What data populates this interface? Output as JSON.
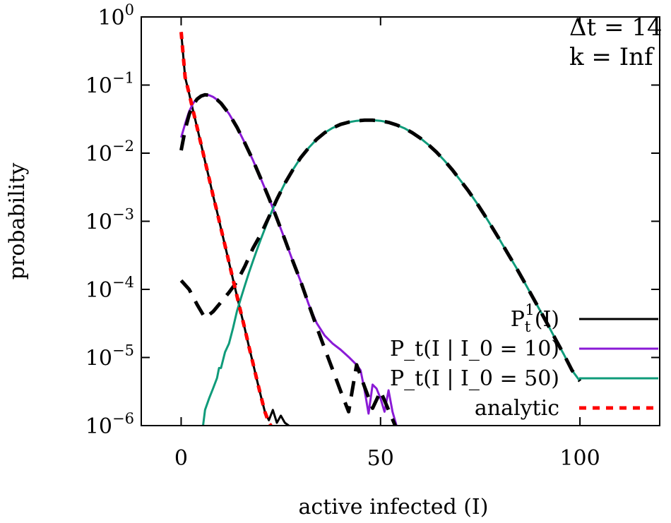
{
  "chart_data": {
    "type": "line",
    "title": "",
    "xlabel": "active infected (I)",
    "ylabel": "probability",
    "xlim": [
      -10,
      120
    ],
    "ylim": [
      1e-06,
      1
    ],
    "yscale": "log",
    "grid": false,
    "legend_position": "bottom-right",
    "x_ticks": [
      {
        "value": 0,
        "label": "0"
      },
      {
        "value": 50,
        "label": "50"
      },
      {
        "value": 100,
        "label": "100"
      }
    ],
    "y_ticks": [
      {
        "value": 1,
        "base": "10",
        "exp": "0"
      },
      {
        "value": 0.1,
        "base": "10",
        "exp": "−1"
      },
      {
        "value": 0.01,
        "base": "10",
        "exp": "−2"
      },
      {
        "value": 0.001,
        "base": "10",
        "exp": "−3"
      },
      {
        "value": 0.0001,
        "base": "10",
        "exp": "−4"
      },
      {
        "value": 1e-05,
        "base": "10",
        "exp": "−5"
      },
      {
        "value": 1e-06,
        "base": "10",
        "exp": "−6"
      }
    ],
    "annotations": [
      "Δt = 14",
      "k = Inf"
    ],
    "series": [
      {
        "name": "P_t^1(I)",
        "color": "#000000",
        "style": "solid",
        "x": [
          0,
          1,
          2,
          3,
          4,
          5,
          6,
          7,
          8,
          9,
          10,
          11,
          12,
          13,
          14,
          15,
          16,
          17,
          18,
          19,
          20,
          21,
          22,
          23,
          24,
          25,
          26,
          27
        ],
        "y": [
          0.6,
          0.13,
          0.075,
          0.042,
          0.024,
          0.0135,
          0.0076,
          0.0043,
          0.0024,
          0.00138,
          0.00078,
          0.00044,
          0.00025,
          0.00014,
          8e-05,
          4.5e-05,
          2.6e-05,
          1.45e-05,
          8.3e-06,
          4.7e-06,
          2.7e-06,
          1.6e-06,
          1.2e-06,
          1.7e-06,
          1.1e-06,
          1.4e-06,
          1.1e-06,
          1e-06
        ]
      },
      {
        "name": "P_t(I | I_0 = 10)",
        "color": "#8a1ad6",
        "style": "solid",
        "x": [
          0,
          1,
          2,
          3,
          4,
          5,
          6,
          7,
          8,
          9,
          10,
          12,
          14,
          16,
          18,
          20,
          22,
          24,
          26,
          28,
          30,
          32,
          34,
          36,
          38,
          40,
          42,
          44,
          45,
          46,
          47,
          48,
          49,
          50,
          51,
          52,
          53,
          54
        ],
        "y": [
          0.017,
          0.027,
          0.041,
          0.054,
          0.064,
          0.07,
          0.072,
          0.071,
          0.067,
          0.061,
          0.054,
          0.038,
          0.024,
          0.014,
          0.0079,
          0.0042,
          0.0022,
          0.0011,
          0.00054,
          0.00026,
          0.00013,
          6e-05,
          3.2e-05,
          2.1e-05,
          1.6e-05,
          1.3e-05,
          1.02e-05,
          7.8e-06,
          6.5e-06,
          3.3e-06,
          1.5e-06,
          4e-06,
          3.5e-06,
          2.5e-06,
          1.6e-06,
          3.3e-06,
          1.6e-06,
          1e-06
        ]
      },
      {
        "name": "P_t(I | I_0 = 50)",
        "color": "#0f9b7a",
        "style": "solid",
        "x": [
          5.5,
          6,
          7,
          8,
          9,
          9.5,
          10,
          11,
          12,
          13,
          14,
          15,
          16,
          17,
          18,
          19,
          20,
          22,
          24,
          26,
          28,
          30,
          32,
          34,
          36,
          38,
          40,
          42,
          44,
          46,
          48,
          50,
          52,
          54,
          56,
          58,
          60,
          62,
          64,
          66,
          68,
          70,
          72,
          74,
          76,
          78,
          80,
          82,
          84,
          86,
          88,
          90,
          92,
          94,
          96,
          98,
          100
        ],
        "y": [
          1e-06,
          1.7e-06,
          2.5e-06,
          3.5e-06,
          5e-06,
          7e-06,
          7e-06,
          1.2e-05,
          1.6e-05,
          2.7e-05,
          4.8e-05,
          7.5e-05,
          0.000115,
          0.000175,
          0.00026,
          0.00038,
          0.00055,
          0.0011,
          0.0021,
          0.0036,
          0.0057,
          0.0086,
          0.012,
          0.016,
          0.02,
          0.0235,
          0.0265,
          0.0285,
          0.0298,
          0.0305,
          0.0305,
          0.0298,
          0.0283,
          0.026,
          0.0232,
          0.0199,
          0.0166,
          0.0133,
          0.0104,
          0.0078,
          0.0057,
          0.004,
          0.0028,
          0.0019,
          0.00125,
          0.00081,
          0.00052,
          0.00033,
          0.00021,
          0.00013,
          8e-05,
          4.9e-05,
          3e-05,
          1.8e-05,
          1.1e-05,
          6.5e-06,
          4.5e-06
        ]
      },
      {
        "name": "P_t^1(I) (dashed)",
        "color": "#000000",
        "style": "dashed",
        "x": [
          0,
          1,
          2,
          3,
          4,
          5,
          6,
          7,
          8,
          9,
          10,
          12,
          14,
          16,
          18,
          20,
          22,
          24,
          26,
          28,
          30,
          32,
          34,
          36,
          38,
          40,
          42,
          44,
          46,
          48,
          50,
          52,
          54
        ],
        "y": [
          0.011,
          0.022,
          0.037,
          0.051,
          0.062,
          0.069,
          0.072,
          0.071,
          0.067,
          0.061,
          0.054,
          0.038,
          0.024,
          0.014,
          0.0079,
          0.0042,
          0.0022,
          0.0011,
          0.00054,
          0.00026,
          0.00013,
          6e-05,
          2.8e-05,
          1.35e-05,
          6.6e-06,
          3.2e-06,
          1.6e-06,
          7.8e-06,
          3.7e-06,
          1.8e-06,
          3.2e-06,
          1.7e-06,
          9e-07
        ]
      },
      {
        "name": "P_t^1(I) (dashed, I_0 = 50)",
        "color": "#000000",
        "style": "dashed",
        "x": [
          0,
          2,
          4,
          6,
          8,
          10,
          12,
          14,
          16,
          18,
          20,
          22,
          24,
          26,
          28,
          30,
          32,
          34,
          36,
          38,
          40,
          42,
          44,
          46,
          48,
          50,
          52,
          54,
          56,
          58,
          60,
          62,
          64,
          66,
          68,
          70,
          72,
          74,
          76,
          78,
          80,
          82,
          84,
          86,
          88,
          90,
          92,
          94,
          96,
          98,
          100
        ],
        "y": [
          0.000135,
          0.0001,
          6e-05,
          3.8e-05,
          4.7e-05,
          6.5e-05,
          9e-05,
          0.00013,
          0.00022,
          0.0004,
          0.00065,
          0.00115,
          0.0021,
          0.0036,
          0.0057,
          0.0086,
          0.012,
          0.016,
          0.02,
          0.0235,
          0.0265,
          0.0285,
          0.0298,
          0.0305,
          0.0305,
          0.0298,
          0.0283,
          0.026,
          0.0232,
          0.0199,
          0.0166,
          0.0133,
          0.0104,
          0.0078,
          0.0057,
          0.004,
          0.0028,
          0.0019,
          0.00125,
          0.00081,
          0.00052,
          0.00033,
          0.00021,
          0.00013,
          8e-05,
          4.9e-05,
          3e-05,
          1.8e-05,
          1.1e-05,
          6.5e-06,
          4.5e-06
        ]
      },
      {
        "name": "analytic",
        "color": "#ff0000",
        "style": "dotted",
        "x": [
          0,
          1,
          2,
          3,
          4,
          5,
          6,
          7,
          8,
          9,
          10,
          11,
          12,
          13,
          14,
          15,
          16,
          17,
          18,
          19,
          20,
          21,
          22,
          23,
          24,
          25,
          26,
          27
        ],
        "y": [
          0.6,
          0.13,
          0.075,
          0.042,
          0.024,
          0.0135,
          0.0076,
          0.0043,
          0.0024,
          0.00138,
          0.00078,
          0.00044,
          0.00025,
          0.00014,
          8e-05,
          4.5e-05,
          2.6e-05,
          1.45e-05,
          8.3e-06,
          4.7e-06,
          2.7e-06,
          1.6e-06,
          1.1e-06,
          9e-07,
          9e-07,
          9e-07,
          9e-07,
          9e-07
        ]
      }
    ],
    "legend": [
      {
        "series_index": 0,
        "base": "P",
        "sub": "t",
        "sup": "1",
        "rest": "(I)",
        "color": "#000000",
        "style": "solid"
      },
      {
        "series_index": 1,
        "text": "P_t(I | I_0 = 10)",
        "color": "#8a1ad6",
        "style": "solid"
      },
      {
        "series_index": 2,
        "text": "P_t(I | I_0 = 50)",
        "color": "#0f9b7a",
        "style": "solid"
      },
      {
        "series_index": 5,
        "text": "analytic",
        "color": "#ff0000",
        "style": "dotted"
      }
    ]
  }
}
